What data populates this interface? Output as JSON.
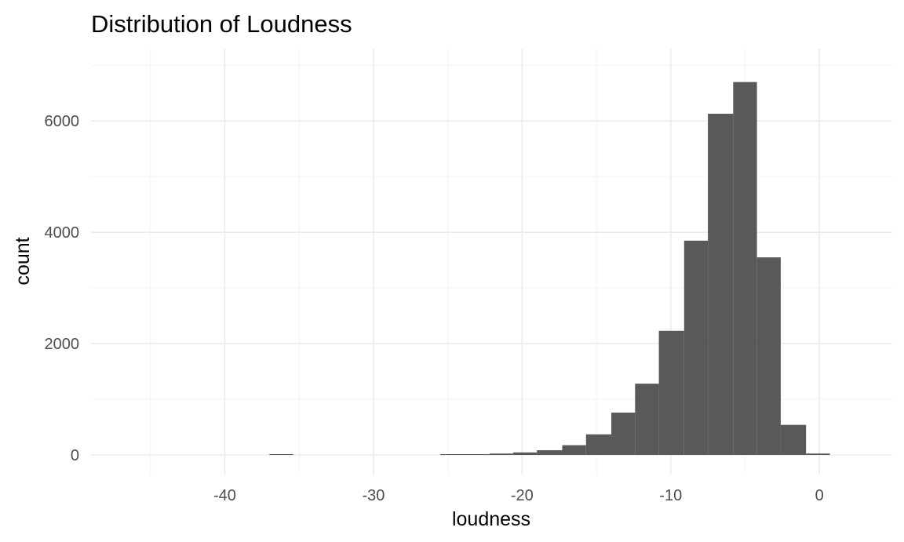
{
  "chart_data": {
    "type": "bar",
    "title": "Distribution of Loudness",
    "xlabel": "loudness",
    "ylabel": "count",
    "xlim": [
      -49.0,
      4.9
    ],
    "ylim": [
      0,
      7300
    ],
    "x_ticks": [
      -40,
      -30,
      -20,
      -10,
      0
    ],
    "x_tick_labels": [
      "-40",
      "-30",
      "-20",
      "-10",
      "0"
    ],
    "y_ticks": [
      0,
      2000,
      4000,
      6000
    ],
    "y_tick_labels": [
      "0",
      "2000",
      "4000",
      "6000"
    ],
    "grid": true,
    "legend": "none",
    "bar_color": "#595959",
    "bins": [
      {
        "x0": -37.0,
        "x1": -35.4,
        "count": 5
      },
      {
        "x0": -25.5,
        "x1": -23.9,
        "count": 8
      },
      {
        "x0": -23.9,
        "x1": -22.2,
        "count": 12
      },
      {
        "x0": -22.2,
        "x1": -20.6,
        "count": 25
      },
      {
        "x0": -20.6,
        "x1": -19.0,
        "count": 45
      },
      {
        "x0": -19.0,
        "x1": -17.3,
        "count": 85
      },
      {
        "x0": -17.3,
        "x1": -15.7,
        "count": 175
      },
      {
        "x0": -15.7,
        "x1": -14.0,
        "count": 370
      },
      {
        "x0": -14.0,
        "x1": -12.4,
        "count": 760
      },
      {
        "x0": -12.4,
        "x1": -10.8,
        "count": 1280
      },
      {
        "x0": -10.8,
        "x1": -9.1,
        "count": 2230
      },
      {
        "x0": -9.1,
        "x1": -7.5,
        "count": 3850
      },
      {
        "x0": -7.5,
        "x1": -5.8,
        "count": 6130
      },
      {
        "x0": -5.8,
        "x1": -4.2,
        "count": 6700
      },
      {
        "x0": -4.2,
        "x1": -2.6,
        "count": 3550
      },
      {
        "x0": -2.6,
        "x1": -0.9,
        "count": 540
      },
      {
        "x0": -0.9,
        "x1": 0.7,
        "count": 25
      }
    ]
  }
}
